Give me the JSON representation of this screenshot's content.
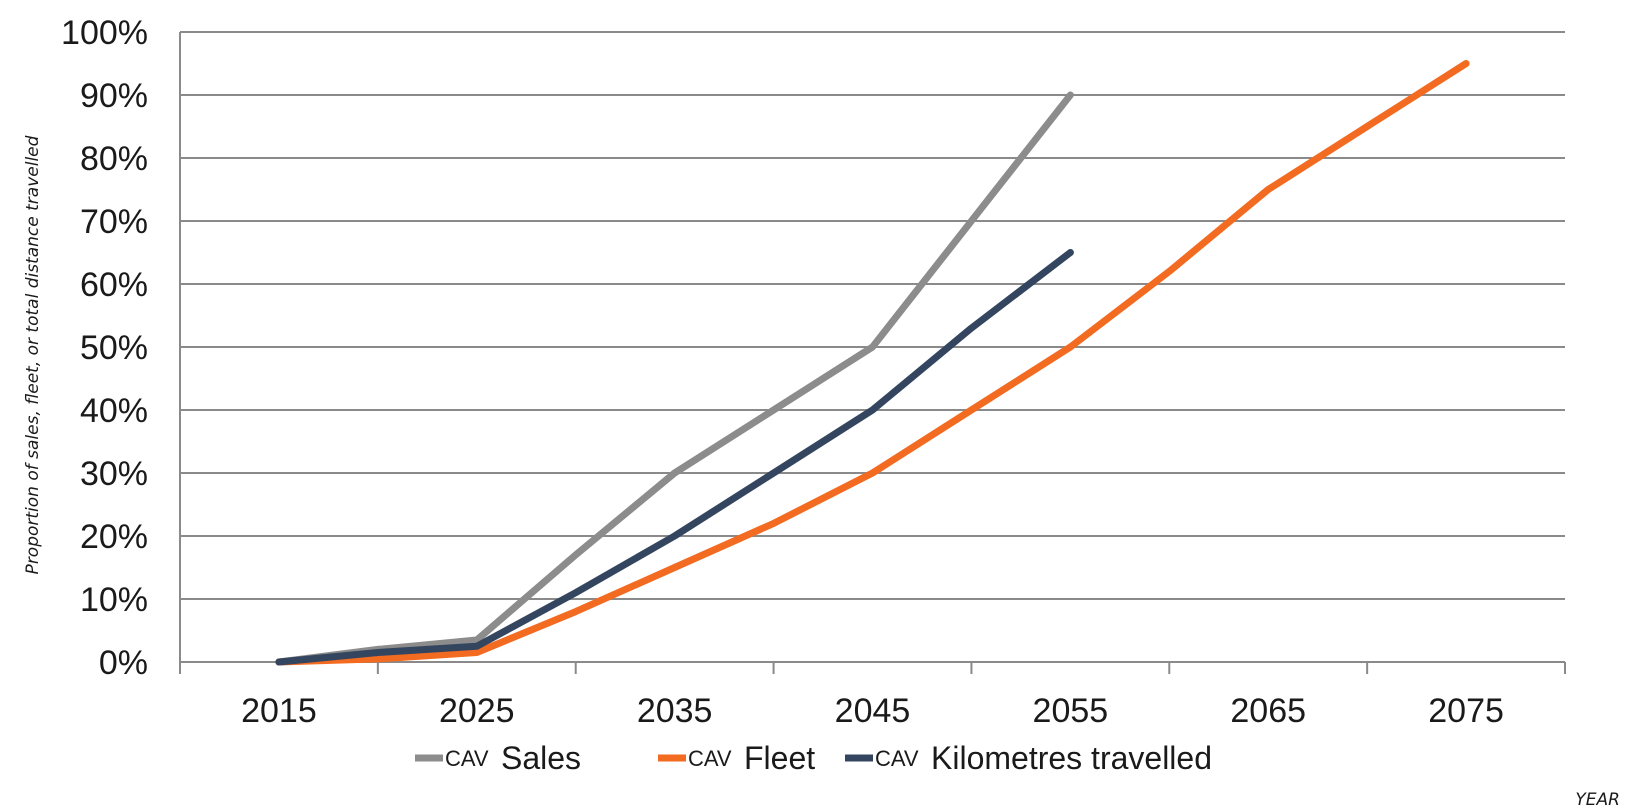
{
  "chart_data": {
    "type": "line",
    "title": "",
    "xlabel": "YEAR",
    "ylabel": "Proportion of sales, fleet, or total distance travelled",
    "x_ticks": [
      "2015",
      "2025",
      "2035",
      "2045",
      "2055",
      "2065",
      "2075"
    ],
    "y_ticks": [
      "0%",
      "10%",
      "20%",
      "30%",
      "40%",
      "50%",
      "60%",
      "70%",
      "80%",
      "90%",
      "100%"
    ],
    "xlim": [
      2010,
      2080
    ],
    "ylim": [
      0,
      100
    ],
    "grid": "horizontal",
    "legend_position": "bottom",
    "series": [
      {
        "name": "Sales",
        "legend_prefix": "CAV",
        "color": "#8c8c8c",
        "x": [
          2015,
          2020,
          2025,
          2030,
          2035,
          2040,
          2045,
          2050,
          2055
        ],
        "y": [
          0,
          2,
          3.5,
          17,
          30,
          40,
          50,
          70,
          90
        ]
      },
      {
        "name": "Fleet",
        "legend_prefix": "CAV",
        "color": "#f26b21",
        "x": [
          2015,
          2020,
          2025,
          2030,
          2035,
          2040,
          2045,
          2050,
          2055,
          2060,
          2065,
          2070,
          2075
        ],
        "y": [
          0,
          0.5,
          1.5,
          8,
          15,
          22,
          30,
          40,
          50,
          62,
          75,
          85,
          95
        ]
      },
      {
        "name": "Kilometres travelled",
        "legend_prefix": "CAV",
        "color": "#34465f",
        "x": [
          2015,
          2020,
          2025,
          2030,
          2035,
          2040,
          2045,
          2050,
          2055
        ],
        "y": [
          0,
          1.5,
          2.5,
          11,
          20,
          30,
          40,
          53,
          65
        ]
      }
    ]
  }
}
